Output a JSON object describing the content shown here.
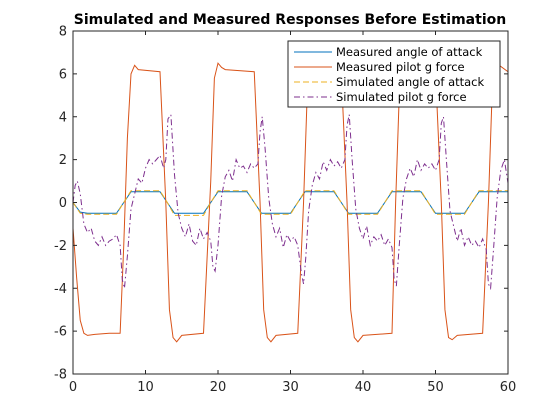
{
  "chart_data": {
    "type": "line",
    "title": "Simulated and Measured Responses Before Estimation",
    "xlabel": "",
    "ylabel": "",
    "xlim": [
      0,
      60
    ],
    "ylim": [
      -8,
      8
    ],
    "xticks": [
      0,
      10,
      20,
      30,
      40,
      50,
      60
    ],
    "yticks": [
      -8,
      -6,
      -4,
      -2,
      0,
      2,
      4,
      6,
      8
    ],
    "grid": false,
    "legend_position": "top-right",
    "series": [
      {
        "name": "Measured angle of attack",
        "color": "#0072BD",
        "style": "solid",
        "x": [
          0,
          1,
          2,
          6,
          7,
          8,
          12,
          13,
          14,
          18,
          19,
          20,
          24,
          25,
          26,
          30,
          31,
          32,
          36,
          37,
          38,
          42,
          43,
          44,
          48,
          49,
          50,
          54,
          55,
          56,
          60
        ],
        "y": [
          0,
          -0.45,
          -0.5,
          -0.5,
          0,
          0.5,
          0.5,
          0,
          -0.5,
          -0.5,
          0,
          0.5,
          0.5,
          0,
          -0.5,
          -0.5,
          0,
          0.5,
          0.5,
          0,
          -0.5,
          -0.5,
          0,
          0.5,
          0.5,
          0,
          -0.5,
          -0.5,
          0,
          0.5,
          0.5
        ]
      },
      {
        "name": "Measured pilot g force",
        "color": "#D95319",
        "style": "solid",
        "x": [
          0,
          0.5,
          1,
          1.5,
          2,
          3,
          5,
          6.5,
          7,
          7.5,
          8,
          8.5,
          9,
          12,
          12.8,
          13.3,
          13.8,
          14.3,
          15,
          18,
          19,
          19.5,
          20,
          20.5,
          21,
          25,
          25.8,
          26.3,
          26.8,
          27.3,
          28,
          31,
          31.8,
          32.3,
          32.8,
          33.3,
          34,
          37,
          37.8,
          38.3,
          38.8,
          39.3,
          40,
          44,
          44.5,
          45,
          45.5,
          46,
          47,
          50,
          50.8,
          51.3,
          51.8,
          52.3,
          53,
          56.5,
          57.3,
          57.8,
          58.3,
          58.8,
          60
        ],
        "y": [
          -1.2,
          -3.5,
          -5.5,
          -6.1,
          -6.2,
          -6.15,
          -6.1,
          -6.1,
          -2,
          3,
          6.0,
          6.4,
          6.2,
          6.1,
          0,
          -5,
          -6.3,
          -6.5,
          -6.2,
          -6.1,
          1,
          5.8,
          6.5,
          6.3,
          6.2,
          6.1,
          0,
          -5,
          -6.3,
          -6.5,
          -6.2,
          -6.1,
          0,
          5,
          6.3,
          6.6,
          6.2,
          6.1,
          0,
          -5,
          -6.3,
          -6.5,
          -6.2,
          -6.1,
          0,
          5,
          6.3,
          6.5,
          6.2,
          6.1,
          0,
          -5,
          -6.3,
          -6.4,
          -6.2,
          -6.1,
          0,
          5,
          6.3,
          6.4,
          6.1
        ]
      },
      {
        "name": "Simulated angle of attack",
        "color": "#EDB120",
        "style": "dashed",
        "x": [
          0,
          1,
          2,
          6,
          7,
          8,
          12,
          13,
          14,
          18,
          19,
          20,
          24,
          25,
          26,
          30,
          31,
          32,
          36,
          37,
          38,
          42,
          43,
          44,
          48,
          49,
          50,
          54,
          55,
          56,
          60
        ],
        "y": [
          0,
          -0.5,
          -0.55,
          -0.55,
          0,
          0.55,
          0.55,
          0,
          -0.6,
          -0.6,
          0,
          0.55,
          0.55,
          0,
          -0.55,
          -0.55,
          0,
          0.55,
          0.55,
          0,
          -0.55,
          -0.55,
          0,
          0.55,
          0.55,
          0,
          -0.55,
          -0.55,
          0,
          0.55,
          0.55
        ]
      },
      {
        "name": "Simulated pilot g force",
        "color": "#7E2F8E",
        "style": "dashdot",
        "x": [
          0,
          0.3,
          0.6,
          1.0,
          1.5,
          2.0,
          2.5,
          3.0,
          3.5,
          4.0,
          4.5,
          5.0,
          5.5,
          6.0,
          6.5,
          6.8,
          7.1,
          7.5,
          8.0,
          8.5,
          9.0,
          9.5,
          10.0,
          10.5,
          11.0,
          11.5,
          12.0,
          12.5,
          12.8,
          13.1,
          13.5,
          14.0,
          14.5,
          15.0,
          15.5,
          16.0,
          16.5,
          17.0,
          17.5,
          18.0,
          18.5,
          19.0,
          19.3,
          19.6,
          20.0,
          20.5,
          21.0,
          21.5,
          22.0,
          22.5,
          23.0,
          23.5,
          24.0,
          24.5,
          25.0,
          25.5,
          25.8,
          26.1,
          26.5,
          27.0,
          27.5,
          28.0,
          28.5,
          29.0,
          29.5,
          30.0,
          30.5,
          31.0,
          31.5,
          31.8,
          32.1,
          32.5,
          33.0,
          33.5,
          34.0,
          34.5,
          35.0,
          35.5,
          36.0,
          36.5,
          37.0,
          37.5,
          37.8,
          38.1,
          38.5,
          39.0,
          39.5,
          40.0,
          40.5,
          41.0,
          41.5,
          42.0,
          42.5,
          43.0,
          43.5,
          44.0,
          44.3,
          44.6,
          45.0,
          45.5,
          46.0,
          46.5,
          47.0,
          47.5,
          48.0,
          48.5,
          49.0,
          49.5,
          50.0,
          50.5,
          50.8,
          51.1,
          51.5,
          52.0,
          52.5,
          53.0,
          53.5,
          54.0,
          54.5,
          55.0,
          55.5,
          56.0,
          56.5,
          57.0,
          57.3,
          57.6,
          58.0,
          58.5,
          59.0,
          59.5,
          60.0
        ],
        "y": [
          0,
          0.8,
          1.0,
          0.4,
          -1.0,
          -1.4,
          -1.2,
          -1.8,
          -2.0,
          -1.6,
          -2.0,
          -1.8,
          -1.7,
          -1.5,
          -2.0,
          -3.6,
          -4.0,
          -2.5,
          -0.3,
          0.4,
          1.1,
          0.9,
          1.6,
          2.0,
          1.8,
          2.0,
          2.2,
          1.6,
          2.0,
          3.9,
          4.1,
          1.3,
          -0.5,
          -1.2,
          -1.6,
          -1.0,
          -1.8,
          -2.0,
          -1.2,
          -1.7,
          -1.4,
          -1.8,
          -3.0,
          -3.2,
          -2.0,
          0.3,
          1.2,
          1.5,
          1.0,
          2.0,
          1.6,
          1.7,
          1.4,
          1.8,
          1.6,
          1.8,
          3.3,
          4.0,
          2.5,
          0.2,
          -1.0,
          -1.6,
          -1.2,
          -2.1,
          -1.5,
          -1.8,
          -1.6,
          -2.0,
          -3.3,
          -3.8,
          -2.6,
          -0.4,
          0.8,
          1.4,
          1.1,
          1.9,
          1.5,
          2.0,
          1.7,
          1.9,
          1.6,
          2.0,
          3.6,
          4.1,
          2.0,
          -0.3,
          -1.2,
          -1.7,
          -1.1,
          -2.0,
          -1.6,
          -1.8,
          -1.5,
          -2.0,
          -1.7,
          -2.1,
          -3.6,
          -3.9,
          -2.0,
          0.2,
          1.1,
          1.6,
          1.2,
          2.0,
          1.5,
          1.8,
          1.6,
          1.8,
          1.5,
          2.0,
          3.7,
          4.0,
          2.0,
          -0.4,
          -1.1,
          -1.8,
          -1.2,
          -2.0,
          -1.6,
          -2.0,
          -1.8,
          -2.1,
          -1.7,
          -2.2,
          -3.8,
          -4.0,
          -2.2,
          0.2,
          1.5,
          2.0,
          0.9
        ]
      }
    ]
  }
}
